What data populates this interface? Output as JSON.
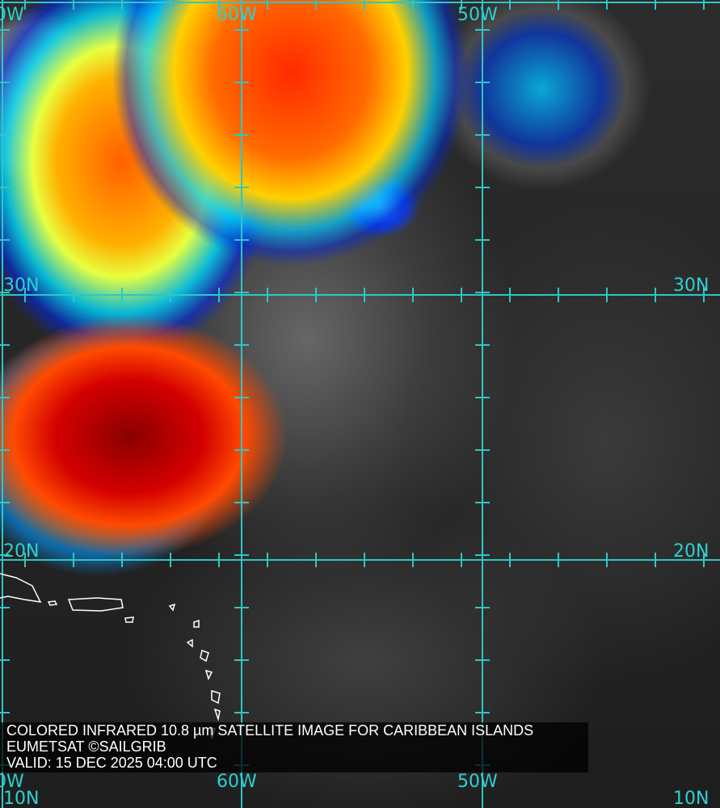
{
  "map": {
    "title": "COLORED INFRARED 10.8 µm SATELLITE IMAGE FOR CARIBBEAN ISLANDS",
    "credit": "EUMETSAT ©SAILGRIB",
    "valid": "VALID:  15 DEC 2025 04:00 UTC",
    "longitude_labels_top": [
      "0W",
      "60W",
      "50W"
    ],
    "longitude_labels_bottom": [
      "0W",
      "60W",
      "50W"
    ],
    "latitude_labels_left": [
      "30N",
      "20N",
      "10N"
    ],
    "latitude_labels_right": [
      "30N",
      "20N",
      "10N"
    ],
    "colors": {
      "grid": "#2fc6c6",
      "cold_top": "#d40000",
      "mid": "#ffd000",
      "warm": "#1040e0"
    }
  }
}
